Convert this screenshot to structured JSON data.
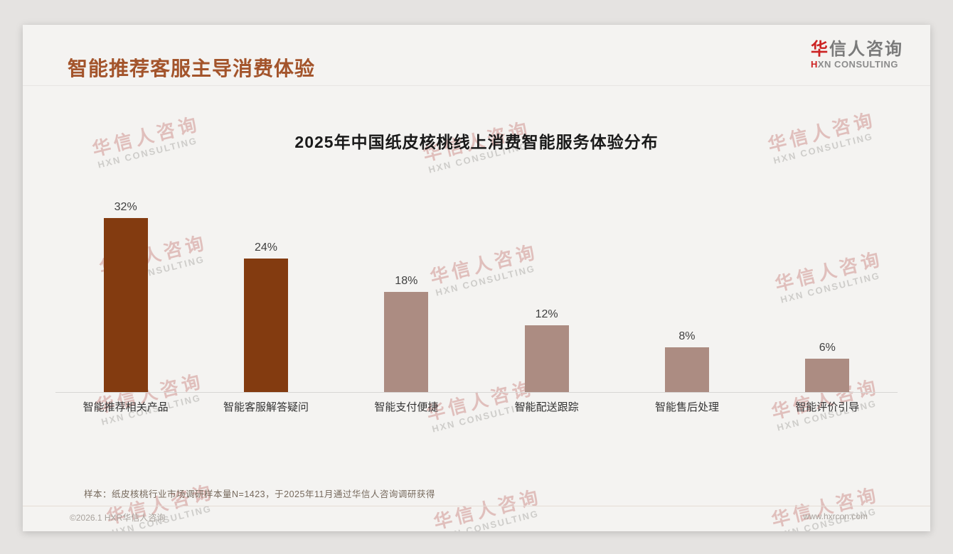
{
  "page": {
    "title": "智能推荐客服主导消费体验",
    "logo": {
      "brand_first": "华",
      "brand_rest": "信人咨询",
      "sub_first": "H",
      "sub_rest": "XN CONSULTING"
    },
    "watermark": {
      "line1": "华信人咨询",
      "line2": "HXN CONSULTING"
    },
    "footnote": "样本：纸皮核桃行业市场调研样本量N=1423，于2025年11月通过华信人咨询调研获得",
    "footer_left": "©2026.1 HXR华信人咨询",
    "footer_right": "www.hxrcon.com"
  },
  "colors": {
    "page_title": "#A3542B",
    "logo_red": "#CC2222",
    "bar_primary": "#833B10",
    "bar_secondary": "#AC8C82",
    "card_background": "#F4F3F1"
  },
  "chart_data": {
    "type": "bar",
    "title": "2025年中国纸皮核桃线上消费智能服务体验分布",
    "categories": [
      "智能推荐相关产品",
      "智能客服解答疑问",
      "智能支付便捷",
      "智能配送跟踪",
      "智能售后处理",
      "智能评价引导"
    ],
    "values": [
      32,
      24,
      18,
      12,
      8,
      6
    ],
    "value_labels": [
      "32%",
      "24%",
      "18%",
      "12%",
      "8%",
      "6%"
    ],
    "bar_colors": [
      "#833B10",
      "#833B10",
      "#AC8C82",
      "#AC8C82",
      "#AC8C82",
      "#AC8C82"
    ],
    "unit": "%",
    "ylim": [
      0,
      34
    ],
    "grid": false,
    "legend": false,
    "value_labels_position": "above-bars",
    "axis_line": "bottom-only"
  }
}
